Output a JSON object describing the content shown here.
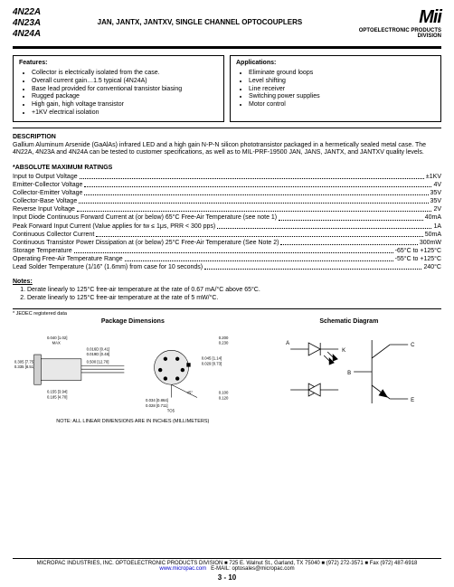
{
  "header": {
    "parts": [
      "4N22A",
      "4N23A",
      "4N24A"
    ],
    "title": "JAN, JANTX, JANTXV, SINGLE CHANNEL OPTOCOUPLERS",
    "logo": "Mii",
    "logo_sub1": "OPTOELECTRONIC PRODUCTS",
    "logo_sub2": "DIVISION"
  },
  "features": {
    "title": "Features:",
    "items": [
      "Collector is electrically isolated from the case.",
      "Overall current gain…1.5 typical (4N24A)",
      "Base lead provided for conventional transistor biasing",
      "Rugged package",
      "High gain, high voltage transistor",
      "+1KV electrical isolation"
    ]
  },
  "applications": {
    "title": "Applications:",
    "items": [
      "Eliminate ground loops",
      "Level shifting",
      "Line receiver",
      "Switching power supplies",
      "Motor control"
    ]
  },
  "description": {
    "heading": "DESCRIPTION",
    "text": "Gallium Aluminum Arsenide (GaAlAs) infrared LED and a high gain N-P-N silicon phototransistor packaged in a hermetically sealed metal case. The 4N22A, 4N23A and 4N24A can be tested to customer specifications, as well as to MIL-PRF-19500 JAN, JANS, JANTX, and JANTXV quality levels."
  },
  "ratings": {
    "heading": "*ABSOLUTE MAXIMUM RATINGS",
    "rows": [
      {
        "label": "Input to Output Voltage",
        "value": "±1KV"
      },
      {
        "label": "Emitter-Collector Voltage",
        "value": "4V"
      },
      {
        "label": "Collector-Emitter Voltage",
        "value": "35V"
      },
      {
        "label": "Collector-Base Voltage",
        "value": "35V"
      },
      {
        "label": "Reverse Input Voltage",
        "value": "2V"
      },
      {
        "label": "Input Diode Continuous Forward Current at (or below) 65°C Free-Air Temperature (see note 1)",
        "value": "40mA"
      },
      {
        "label": "Peak Forward Input Current (Value applies for tw ≤ 1μs, PRR < 300 pps)",
        "value": "1A"
      },
      {
        "label": "Continuous Collector Current",
        "value": "50mA"
      },
      {
        "label": "Continuous Transistor Power Dissipation at (or below) 25°C Free-Air Temperature (See Note 2)",
        "value": "300mW"
      },
      {
        "label": "Storage Temperature",
        "value": "-65°C to +125°C"
      },
      {
        "label": "Operating Free-Air Temperature Range",
        "value": "-55°C to +125°C"
      },
      {
        "label": "Lead Solder Temperature (1/16\" (1.6mm) from case for 10 seconds)",
        "value": "240°C"
      }
    ]
  },
  "notes": {
    "heading": "Notes:",
    "items": [
      "Derate linearly to 125°C free-air temperature at the rate of 0.67 mA/°C above 65°C.",
      "Derate linearly to 125°C free-air temperature at the rate of 5 mW/°C."
    ]
  },
  "jedec": "* JEDEC registered data",
  "diagrams": {
    "pkg_title": "Package Dimensions",
    "schem_title": "Schematic Diagram",
    "note": "NOTE: ALL LINEAR DIMENSIONS ARE IN INCHES (MILLIMETERS)",
    "pkg_dims": [
      "0.040 [1.02]",
      "MAX",
      "0.305 [7.75]",
      "0.335 [8.51]",
      "0.016D [0.41]",
      "0.019D [0.48]",
      "0.500 [12.70]",
      "0.155 [3.94]",
      "0.185 [4.70]",
      "0.034 [0.864]",
      "0.028 [0.711]",
      "TO5",
      "45°",
      "0.045 [1.14]",
      "0.029 [0.73]",
      "0.200",
      "0.230",
      "0.100",
      "0.120"
    ],
    "schem_pins": [
      "A",
      "K",
      "C",
      "B",
      "E",
      "1",
      "2",
      "3",
      "4",
      "5",
      "6"
    ]
  },
  "footer": {
    "line1": "MICROPAC INDUSTRIES, INC. OPTOELECTRONIC PRODUCTS DIVISION ■ 725 E. Walnut St., Garland, TX 75040 ■ (972) 272-3571 ■ Fax (972) 487-6918",
    "url": "www.micropac.com",
    "email_label": "E-MAIL:",
    "email": "optosales@micropac.com",
    "page": "3 - 10"
  }
}
